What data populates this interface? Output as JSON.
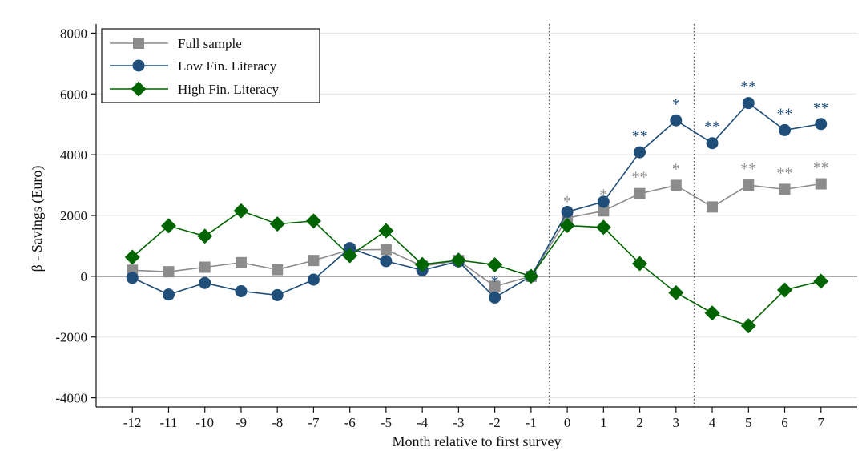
{
  "chart_data": {
    "type": "line",
    "xlabel": "Month relative to first survey",
    "ylabel": "β - Savings (Euro)",
    "x": [
      -12,
      -11,
      -10,
      -9,
      -8,
      -7,
      -6,
      -5,
      -4,
      -3,
      -2,
      -1,
      0,
      1,
      2,
      3,
      4,
      5,
      6,
      7
    ],
    "x_tick_labels": [
      "-12",
      "-11",
      "-10",
      "-9",
      "-8",
      "-7",
      "-6",
      "-5",
      "-4",
      "-3",
      "-2",
      "-1",
      "0",
      "1",
      "2",
      "3",
      "4",
      "5",
      "6",
      "7"
    ],
    "ylim": [
      -4300,
      8300
    ],
    "y_ticks": [
      -4000,
      -2000,
      0,
      2000,
      4000,
      6000,
      8000
    ],
    "y_tick_labels": [
      "-4000",
      "-2000",
      "0",
      "2000",
      "4000",
      "6000",
      "8000"
    ],
    "grid": true,
    "legend_position": "top-left",
    "vertical_reference_lines_x": [
      -0.5,
      3.5
    ],
    "series": [
      {
        "name": "Full sample",
        "marker": "square",
        "color": "#8c8c8c",
        "values": [
          200,
          150,
          300,
          450,
          220,
          520,
          870,
          880,
          330,
          520,
          -330,
          0,
          1920,
          2150,
          2720,
          2990,
          2280,
          3000,
          2860,
          3040
        ],
        "significance": [
          "",
          "",
          "",
          "",
          "",
          "",
          "",
          "",
          "",
          "",
          "",
          "",
          "*",
          "*",
          "**",
          "*",
          "",
          "**",
          "**",
          "**"
        ]
      },
      {
        "name": "Low Fin. Literacy",
        "marker": "circle",
        "color": "#1f4e79",
        "values": [
          -50,
          -600,
          -220,
          -490,
          -620,
          -110,
          930,
          500,
          200,
          490,
          -700,
          0,
          2120,
          2450,
          4080,
          5130,
          4380,
          5700,
          4810,
          5010
        ],
        "significance": [
          "",
          "",
          "",
          "",
          "",
          "",
          "",
          "",
          "",
          "",
          "*",
          "",
          "",
          "",
          "**",
          "*",
          "**",
          "**",
          "**",
          "**"
        ]
      },
      {
        "name": "High Fin. Literacy",
        "marker": "diamond",
        "color": "#006400",
        "values": [
          630,
          1660,
          1320,
          2150,
          1720,
          1820,
          680,
          1500,
          390,
          530,
          380,
          0,
          1670,
          1610,
          420,
          -540,
          -1210,
          -1630,
          -450,
          -160
        ],
        "significance": [
          "",
          "",
          "",
          "",
          "",
          "",
          "",
          "",
          "",
          "",
          "",
          "",
          "",
          "",
          "",
          "",
          "",
          "",
          "",
          ""
        ]
      }
    ]
  }
}
